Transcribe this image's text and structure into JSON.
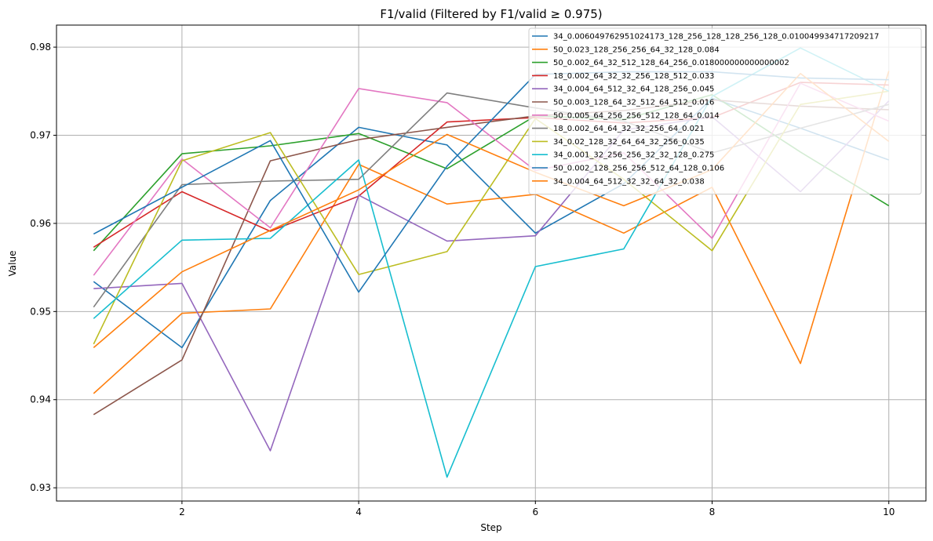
{
  "chart_data": {
    "type": "line",
    "title": "F1/valid (Filtered by F1/valid ≥ 0.975)",
    "xlabel": "Step",
    "ylabel": "Value",
    "xlim": [
      0.58,
      10.42
    ],
    "ylim": [
      0.9285,
      0.9825
    ],
    "xticks": [
      2,
      4,
      6,
      8,
      10
    ],
    "xtick_labels": [
      "2",
      "4",
      "6",
      "8",
      "10"
    ],
    "yticks": [
      0.93,
      0.94,
      0.95,
      0.96,
      0.97,
      0.98
    ],
    "ytick_labels": [
      "0.93",
      "0.94",
      "0.95",
      "0.96",
      "0.97",
      "0.98"
    ],
    "grid": true,
    "legend_position": "top-right",
    "x": [
      1,
      2,
      3,
      4,
      5,
      6,
      7,
      8,
      9,
      10
    ],
    "series": [
      {
        "name": "34_0.006049762951024173_128_256_128_128_256_128_0.010049934717209217",
        "color": "#1f77b4",
        "values": [
          0.9534,
          0.9459,
          0.9626,
          0.9709,
          0.9689,
          0.9589,
          0.9645,
          0.9742,
          0.9708,
          0.9672
        ]
      },
      {
        "name": "50_0.023_128_256_256_64_32_128_0.084",
        "color": "#ff7f0e",
        "values": [
          0.9407,
          0.9498,
          0.9503,
          0.9667,
          0.9622,
          0.9633,
          0.9589,
          0.9641,
          0.9441,
          0.9773
        ]
      },
      {
        "name": "50_0.002_64_32_512_128_64_256_0.018000000000000002",
        "color": "#2ca02c",
        "values": [
          0.9569,
          0.9679,
          0.9688,
          0.9702,
          0.9662,
          0.9722,
          0.9718,
          0.9746,
          0.9681,
          0.962
        ]
      },
      {
        "name": "18_0.002_64_32_32_256_128_512_0.033",
        "color": "#d62728",
        "values": [
          0.9573,
          0.9636,
          0.9591,
          0.9631,
          0.9715,
          0.972,
          0.9714,
          0.972,
          0.976,
          0.9757
        ]
      },
      {
        "name": "34_0.004_64_512_32_64_128_256_0.045",
        "color": "#9467bd",
        "values": [
          0.9526,
          0.9532,
          0.9342,
          0.9632,
          0.958,
          0.9586,
          0.9706,
          0.9721,
          0.9636,
          0.9739
        ]
      },
      {
        "name": "50_0.003_128_64_32_512_64_512_0.016",
        "color": "#8c564b",
        "values": [
          0.9383,
          0.9445,
          0.9671,
          0.9695,
          0.9709,
          0.9722,
          0.9728,
          0.974,
          0.9733,
          0.9729
        ]
      },
      {
        "name": "50_0.005_64_256_256_512_128_64_0.014",
        "color": "#e377c2",
        "values": [
          0.9541,
          0.9673,
          0.9595,
          0.9753,
          0.9737,
          0.966,
          0.968,
          0.9583,
          0.9759,
          0.9716
        ]
      },
      {
        "name": "18_0.002_64_64_32_32_256_64_0.021",
        "color": "#7f7f7f",
        "values": [
          0.9505,
          0.9644,
          0.9648,
          0.965,
          0.9748,
          0.9731,
          0.9716,
          0.968,
          0.9708,
          0.9735
        ]
      },
      {
        "name": "34_0.02_128_32_64_64_32_256_0.035",
        "color": "#bcbd22",
        "values": [
          0.9463,
          0.9671,
          0.9703,
          0.9542,
          0.9568,
          0.9719,
          0.965,
          0.9569,
          0.9735,
          0.975
        ]
      },
      {
        "name": "34_0.001_32_256_256_32_32_128_0.275",
        "color": "#17becf",
        "values": [
          0.9492,
          0.9581,
          0.9583,
          0.9672,
          0.9312,
          0.9551,
          0.9571,
          0.9744,
          0.9799,
          0.975
        ]
      },
      {
        "name": "50_0.002_128_256_256_512_64_128_0.106",
        "color": "#1f77b4",
        "values": [
          0.9588,
          0.9641,
          0.9694,
          0.9522,
          0.9665,
          0.9769,
          0.9772,
          0.9772,
          0.9765,
          0.9763
        ]
      },
      {
        "name": "34_0.004_64_512_32_32_64_32_0.038",
        "color": "#ff7f0e",
        "values": [
          0.9459,
          0.9545,
          0.9592,
          0.9638,
          0.9701,
          0.9658,
          0.962,
          0.9661,
          0.977,
          0.9693
        ]
      }
    ]
  }
}
